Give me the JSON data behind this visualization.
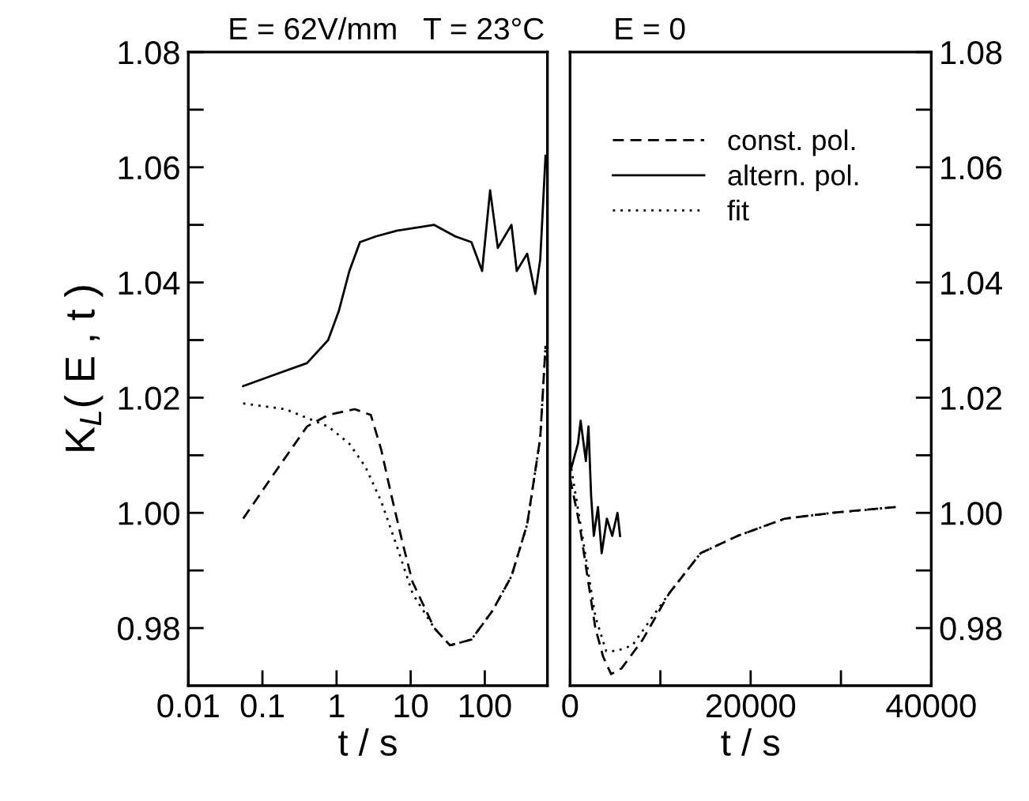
{
  "chart_data": [
    {
      "type": "line",
      "title": "E = 62V/mm   T = 23°C",
      "xlabel": "t / s",
      "ylabel": "K$_{L}$( E , t )",
      "log": "x",
      "xlim": [
        0.01,
        700
      ],
      "xticks": [
        0.01,
        0.1,
        1,
        10,
        100
      ],
      "ylim": [
        0.97,
        1.08
      ],
      "yticks": [
        {
          "value": 0.98,
          "label": "0.98"
        },
        {
          "value": 0.99,
          "label": null
        },
        {
          "value": 1.0,
          "label": "1.00"
        },
        {
          "value": 1.01,
          "label": null
        },
        {
          "value": 1.02,
          "label": "1.02"
        },
        {
          "value": 1.03,
          "label": null
        },
        {
          "value": 1.04,
          "label": "1.04"
        },
        {
          "value": 1.05,
          "label": null
        },
        {
          "value": 1.06,
          "label": "1.06"
        },
        {
          "value": 1.07,
          "label": null
        },
        {
          "value": 1.08,
          "label": "1.08"
        }
      ],
      "grid": false,
      "legend": false,
      "series": [
        {
          "color": "#000000",
          "line_style": "dashed",
          "x": [
            0.055,
            0.147,
            0.4,
            0.77,
            1.76,
            2.9,
            4.0,
            5.5,
            7.7,
            10.6,
            20.8,
            34,
            66,
            127,
            229,
            373,
            560,
            660
          ],
          "values": [
            0.999,
            1.007,
            1.015,
            1.017,
            1.018,
            1.017,
            1.011,
            1.003,
            0.995,
            0.988,
            0.98,
            0.977,
            0.978,
            0.983,
            0.989,
            0.998,
            1.013,
            1.029
          ]
        },
        {
          "color": "#000000",
          "line_style": "solid",
          "x": [
            0.055,
            0.147,
            0.4,
            0.77,
            1.07,
            1.49,
            2.07,
            3.4,
            6.6,
            20.8,
            40,
            66,
            92,
            118,
            150,
            229,
            270,
            373,
            480,
            560,
            660
          ],
          "values": [
            1.022,
            1.024,
            1.026,
            1.03,
            1.035,
            1.042,
            1.047,
            1.048,
            1.049,
            1.05,
            1.048,
            1.047,
            1.042,
            1.056,
            1.046,
            1.05,
            1.042,
            1.045,
            1.038,
            1.044,
            1.062
          ]
        },
        {
          "color": "#000000",
          "line_style": "dotted",
          "x": [
            0.055,
            0.204,
            0.77,
            1.49,
            2.45,
            4.0,
            6.6,
            10.6,
            20.8,
            34,
            66,
            127,
            229,
            373,
            560,
            660
          ],
          "values": [
            1.019,
            1.018,
            1.015,
            1.012,
            1.008,
            1.002,
            0.994,
            0.986,
            0.98,
            0.977,
            0.978,
            0.983,
            0.989,
            0.998,
            1.013,
            1.029
          ]
        }
      ]
    },
    {
      "type": "line",
      "title": "E = 0",
      "xlabel": "t / s",
      "xlim": [
        0,
        40000
      ],
      "xticks": [
        0,
        {
          "value": 10000,
          "label": null
        },
        20000,
        {
          "value": 30000,
          "label": null
        },
        40000
      ],
      "ylim": [
        0.97,
        1.08
      ],
      "yticks": [
        {
          "value": 0.98,
          "label": "0.98"
        },
        {
          "value": 0.99,
          "label": null
        },
        {
          "value": 1.0,
          "label": "1.00"
        },
        {
          "value": 1.01,
          "label": null
        },
        {
          "value": 1.02,
          "label": "1.02"
        },
        {
          "value": 1.03,
          "label": null
        },
        {
          "value": 1.04,
          "label": "1.04"
        },
        {
          "value": 1.05,
          "label": null
        },
        {
          "value": 1.06,
          "label": "1.06"
        },
        {
          "value": 1.07,
          "label": null
        },
        {
          "value": 1.08,
          "label": "1.08"
        }
      ],
      "grid": false,
      "legend": "top right",
      "series": [
        {
          "name": "const. pol.",
          "color": "#000000",
          "line_style": "dashed",
          "x": [
            0,
            1050,
            1920,
            2800,
            3670,
            4550,
            5700,
            8050,
            10960,
            14460,
            18550,
            23800,
            29050,
            36050
          ],
          "values": [
            1.006,
            0.998,
            0.989,
            0.98,
            0.975,
            0.972,
            0.973,
            0.978,
            0.986,
            0.993,
            0.996,
            0.999,
            1.0,
            1.001
          ]
        },
        {
          "name": "altern. pol.",
          "color": "#000000",
          "line_style": "solid",
          "x": [
            0,
            875,
            1170,
            1750,
            2040,
            2330,
            2630,
            3090,
            3500,
            4080,
            4670,
            5250,
            5540
          ],
          "values": [
            1.007,
            1.012,
            1.016,
            1.009,
            1.015,
            1.003,
            0.996,
            1.001,
            0.993,
            0.999,
            0.996,
            1.0,
            0.996
          ]
        },
        {
          "name": "fit",
          "color": "#000000",
          "line_style": "dotted",
          "x": [
            0,
            1050,
            2800,
            4000,
            5100,
            6900,
            9150,
            10960,
            14460,
            18550,
            23800,
            29050,
            36050
          ],
          "values": [
            1.009,
            0.999,
            0.982,
            0.976,
            0.976,
            0.977,
            0.982,
            0.986,
            0.993,
            0.996,
            0.999,
            1.0,
            1.001
          ]
        }
      ]
    }
  ]
}
